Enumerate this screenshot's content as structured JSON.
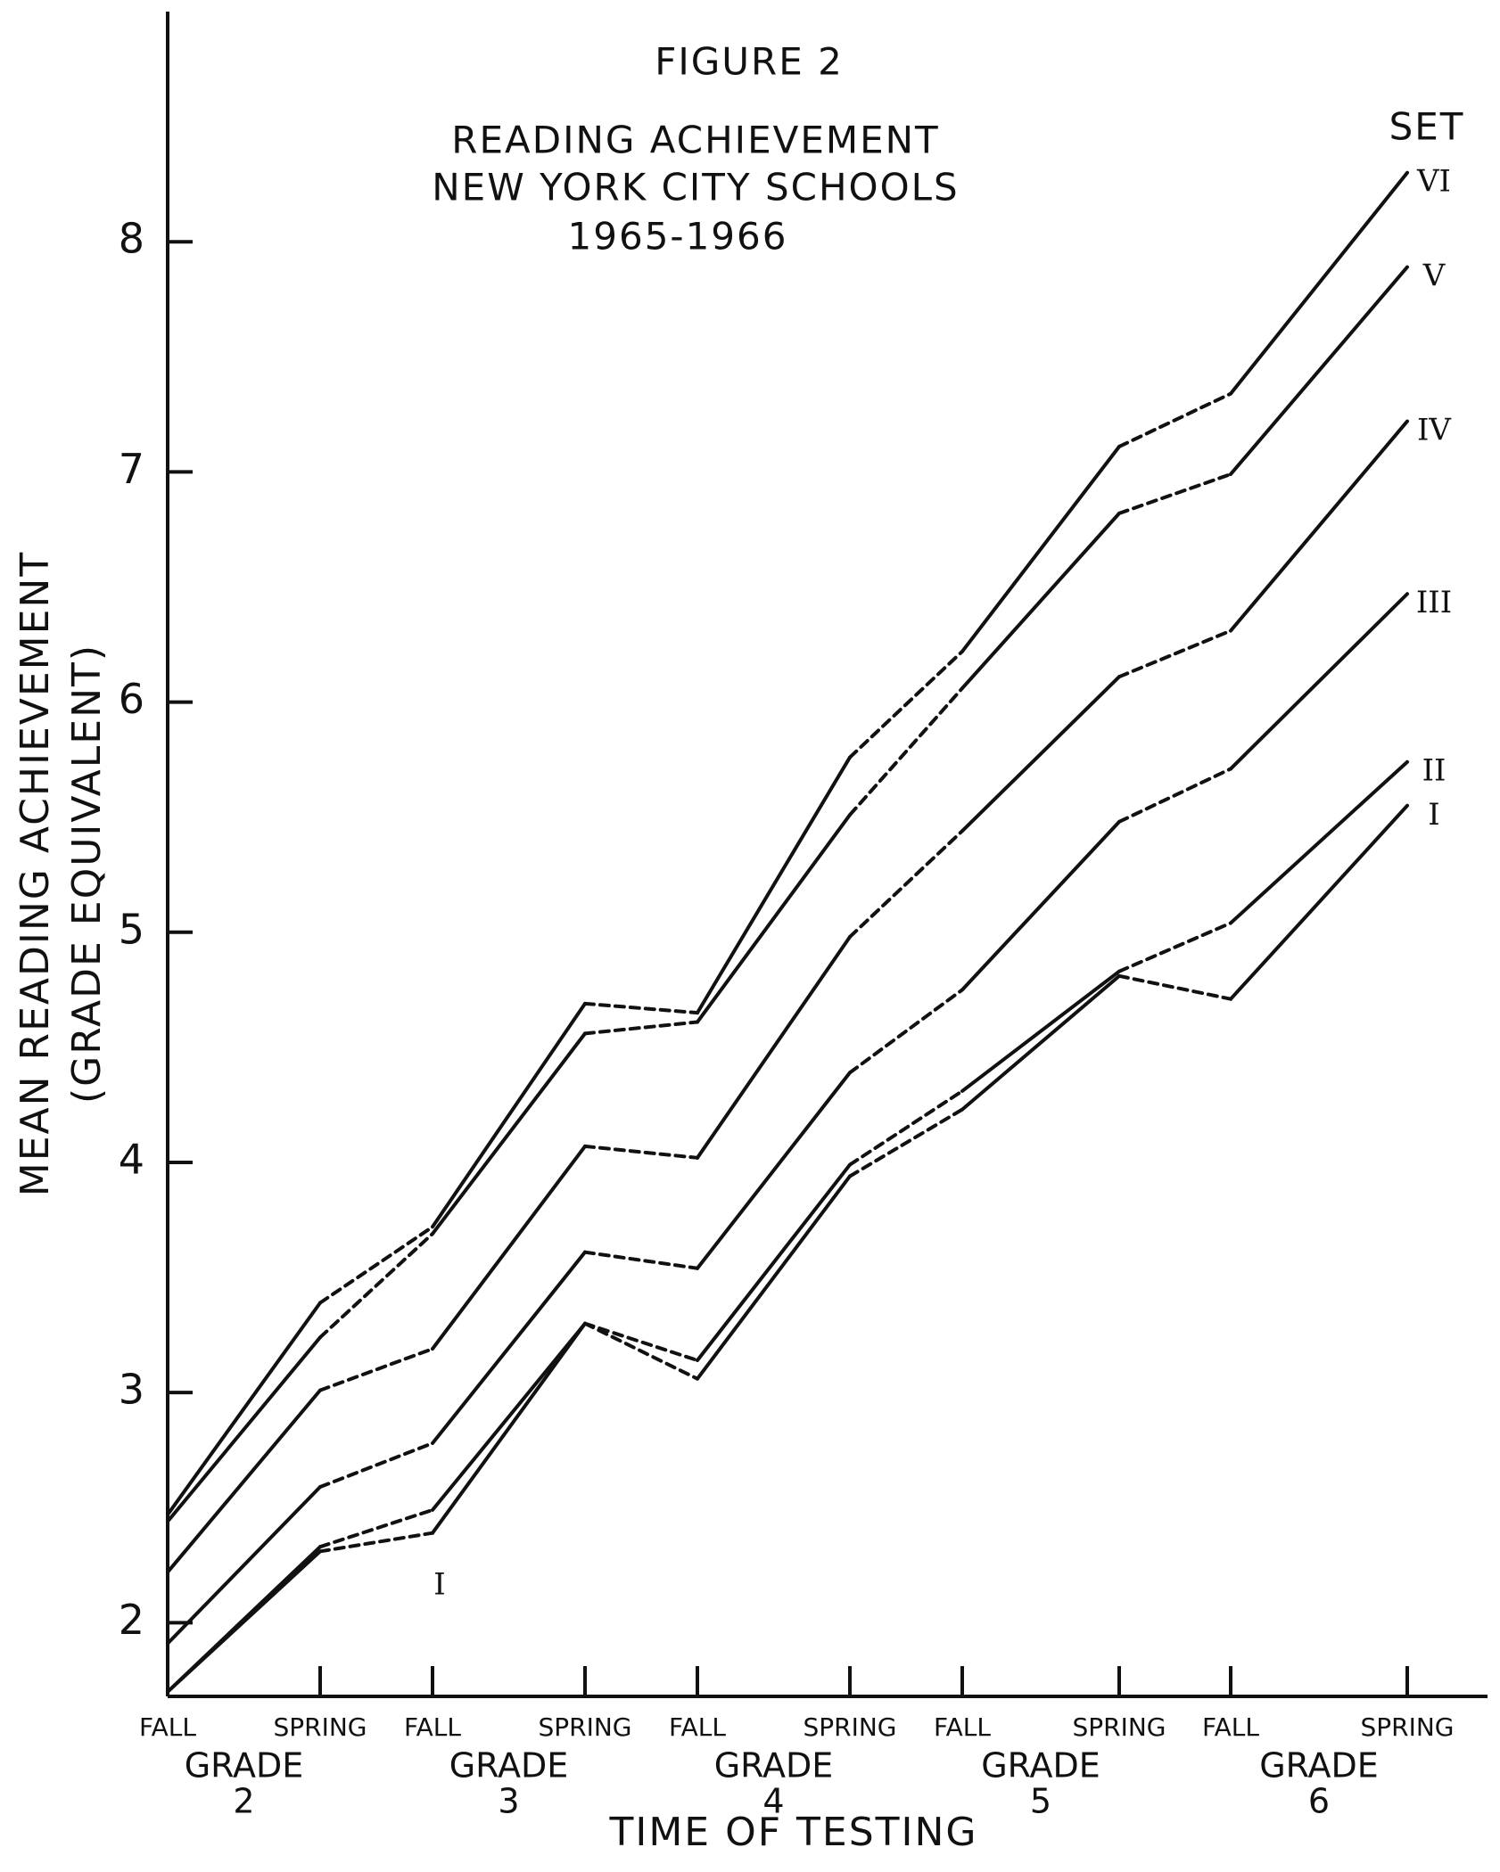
{
  "chart_data": {
    "type": "line",
    "figure_label": "FIGURE 2",
    "title": [
      "READING ACHIEVEMENT",
      "NEW YORK CITY SCHOOLS",
      "1965-1966"
    ],
    "y_label": [
      "MEAN READING ACHIEVEMENT",
      "(GRADE EQUIVALENT)"
    ],
    "x_label": "TIME OF TESTING",
    "categories": [
      "FALL",
      "SPRING",
      "FALL",
      "SPRING",
      "FALL",
      "SPRING",
      "FALL",
      "SPRING",
      "FALL",
      "SPRING"
    ],
    "groups": [
      [
        "GRADE",
        "2"
      ],
      [
        "GRADE",
        "3"
      ],
      [
        "GRADE",
        "4"
      ],
      [
        "GRADE",
        "5"
      ],
      [
        "GRADE",
        "6"
      ]
    ],
    "legend_title": "SET",
    "segment_styles": [
      "solid",
      "dashed",
      "solid",
      "dashed",
      "solid",
      "dashed",
      "solid",
      "dashed",
      "solid"
    ],
    "color": "#111111",
    "ylim": [
      1.68,
      9.0
    ],
    "yticks": [
      2,
      3,
      4,
      5,
      6,
      7,
      8
    ],
    "series": [
      {
        "name": "I",
        "values": [
          1.7,
          2.31,
          2.39,
          3.3,
          3.06,
          3.94,
          4.23,
          4.81,
          4.71,
          5.55
        ]
      },
      {
        "name": "II",
        "values": [
          1.7,
          2.33,
          2.49,
          3.3,
          3.14,
          3.99,
          4.31,
          4.83,
          5.04,
          5.74
        ]
      },
      {
        "name": "III",
        "values": [
          1.91,
          2.59,
          2.78,
          3.61,
          3.54,
          4.39,
          4.75,
          5.48,
          5.71,
          6.47
        ]
      },
      {
        "name": "IV",
        "values": [
          2.22,
          3.01,
          3.19,
          4.07,
          4.02,
          4.98,
          5.44,
          6.11,
          6.31,
          7.22
        ]
      },
      {
        "name": "V",
        "values": [
          2.44,
          3.24,
          3.69,
          4.56,
          4.61,
          5.51,
          6.06,
          6.82,
          6.99,
          7.89
        ]
      },
      {
        "name": "VI",
        "values": [
          2.47,
          3.39,
          3.72,
          4.69,
          4.65,
          5.76,
          6.22,
          7.11,
          7.34,
          8.3
        ]
      }
    ]
  }
}
